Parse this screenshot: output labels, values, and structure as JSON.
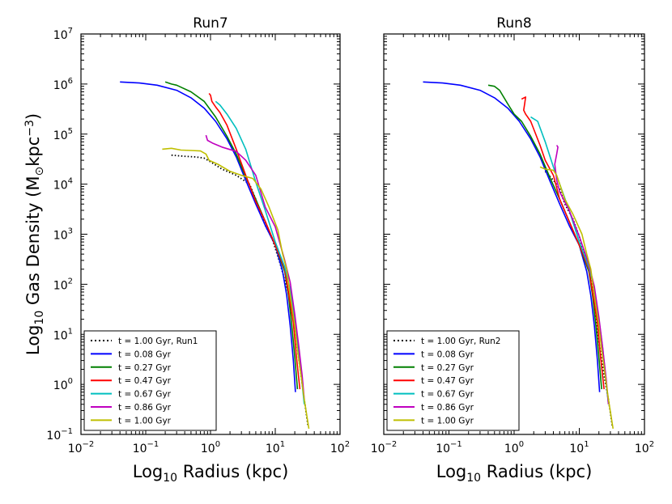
{
  "chart_data": [
    {
      "type": "line",
      "title": "Run7",
      "xscale": "log",
      "yscale": "log",
      "xlim": [
        0.01,
        100
      ],
      "ylim": [
        0.1,
        10000000
      ],
      "xlabel_base": "Log",
      "xlabel_sub": "10",
      "xlabel_rest": " Radius (kpc)",
      "ylabel_base": "Log",
      "ylabel_sub": "10",
      "ylabel_rest": " Gas Density (M",
      "ylabel_sun": "⊙",
      "ylabel_unit": "kpc",
      "ylabel_exp": "−3",
      "ylabel_close": ")",
      "legend_location": "lower-left",
      "series": [
        {
          "name": "t = 1.00 Gyr, Run1",
          "color": "#000000",
          "style": "dotted",
          "points": [
            [
              0.25,
              38000
            ],
            [
              0.4,
              36000
            ],
            [
              0.6,
              35000
            ],
            [
              0.8,
              33000
            ],
            [
              1.0,
              28000
            ],
            [
              1.5,
              20000
            ],
            [
              2.5,
              15000
            ],
            [
              4,
              10000
            ],
            [
              5,
              5000
            ],
            [
              6,
              2500
            ],
            [
              7,
              1500
            ],
            [
              9,
              800
            ],
            [
              12,
              250
            ],
            [
              14,
              120
            ],
            [
              17,
              50
            ],
            [
              20,
              15
            ],
            [
              22,
              5
            ],
            [
              25,
              1.5
            ],
            [
              28,
              0.5
            ],
            [
              32,
              0.15
            ]
          ]
        },
        {
          "name": "t = 0.08 Gyr",
          "color": "#0000ff",
          "style": "solid",
          "points": [
            [
              0.04,
              1100000
            ],
            [
              0.08,
              1050000
            ],
            [
              0.15,
              950000
            ],
            [
              0.3,
              750000
            ],
            [
              0.5,
              530000
            ],
            [
              0.8,
              330000
            ],
            [
              1.2,
              180000
            ],
            [
              1.8,
              80000
            ],
            [
              2.5,
              35000
            ],
            [
              3.5,
              12000
            ],
            [
              5,
              4000
            ],
            [
              7,
              1500
            ],
            [
              10,
              600
            ],
            [
              13,
              180
            ],
            [
              15,
              60
            ],
            [
              17,
              15
            ],
            [
              19,
              3
            ],
            [
              20.5,
              0.7
            ]
          ]
        },
        {
          "name": "t = 0.27 Gyr",
          "color": "#008000",
          "style": "solid",
          "points": [
            [
              0.2,
              1100000
            ],
            [
              0.25,
              1000000
            ],
            [
              0.3,
              950000
            ],
            [
              0.5,
              700000
            ],
            [
              0.8,
              450000
            ],
            [
              1.2,
              220000
            ],
            [
              1.8,
              90000
            ],
            [
              2.5,
              40000
            ],
            [
              3.5,
              14000
            ],
            [
              5,
              5000
            ],
            [
              7,
              1800
            ],
            [
              10,
              600
            ],
            [
              14,
              180
            ],
            [
              16,
              60
            ],
            [
              18,
              15
            ],
            [
              20,
              3.5
            ],
            [
              22,
              0.8
            ]
          ]
        },
        {
          "name": "t = 0.47 Gyr",
          "color": "#ff0000",
          "style": "solid",
          "points": [
            [
              0.95,
              650000
            ],
            [
              1.0,
              600000
            ],
            [
              1.05,
              450000
            ],
            [
              1.2,
              350000
            ],
            [
              1.4,
              270000
            ],
            [
              1.8,
              150000
            ],
            [
              2.5,
              50000
            ],
            [
              3.5,
              15000
            ],
            [
              5,
              4500
            ],
            [
              7,
              1800
            ],
            [
              10,
              600
            ],
            [
              14,
              200
            ],
            [
              16,
              70
            ],
            [
              19,
              17
            ],
            [
              21,
              4
            ],
            [
              24,
              0.8
            ]
          ]
        },
        {
          "name": "t = 0.67 Gyr",
          "color": "#00bfbf",
          "style": "solid",
          "points": [
            [
              1.2,
              450000
            ],
            [
              1.4,
              380000
            ],
            [
              1.8,
              250000
            ],
            [
              2.5,
              130000
            ],
            [
              3.5,
              50000
            ],
            [
              5,
              11000
            ],
            [
              7,
              3000
            ],
            [
              10,
              700
            ],
            [
              14,
              220
            ],
            [
              17,
              80
            ],
            [
              20,
              20
            ],
            [
              23,
              5
            ],
            [
              26,
              1
            ],
            [
              28,
              0.4
            ]
          ]
        },
        {
          "name": "t = 0.86 Gyr",
          "color": "#bf00bf",
          "style": "solid",
          "points": [
            [
              0.85,
              95000
            ],
            [
              0.9,
              75000
            ],
            [
              1.1,
              65000
            ],
            [
              1.5,
              55000
            ],
            [
              2.5,
              45000
            ],
            [
              3.5,
              30000
            ],
            [
              5,
              15000
            ],
            [
              7,
              3500
            ],
            [
              10,
              1400
            ],
            [
              14,
              300
            ],
            [
              17,
              110
            ],
            [
              20,
              25
            ],
            [
              23,
              6
            ],
            [
              26,
              1.5
            ],
            [
              28,
              0.5
            ]
          ]
        },
        {
          "name": "t = 1.00 Gyr",
          "color": "#bfbf00",
          "style": "solid",
          "points": [
            [
              0.18,
              50000
            ],
            [
              0.25,
              52000
            ],
            [
              0.35,
              48000
            ],
            [
              0.5,
              47000
            ],
            [
              0.7,
              46000
            ],
            [
              0.85,
              40000
            ],
            [
              0.95,
              30000
            ],
            [
              1.3,
              25000
            ],
            [
              2,
              18000
            ],
            [
              3,
              15000
            ],
            [
              4.5,
              13000
            ],
            [
              6,
              8000
            ],
            [
              8,
              3500
            ],
            [
              11,
              1200
            ],
            [
              13,
              400
            ],
            [
              15,
              200
            ],
            [
              17,
              60
            ],
            [
              20,
              15
            ],
            [
              22,
              5
            ],
            [
              25,
              1.5
            ],
            [
              28,
              0.5
            ],
            [
              33,
              0.13
            ]
          ]
        }
      ]
    },
    {
      "type": "line",
      "title": "Run8",
      "xscale": "log",
      "yscale": "log",
      "xlim": [
        0.01,
        100
      ],
      "ylim": [
        0.1,
        10000000
      ],
      "xlabel_base": "Log",
      "xlabel_sub": "10",
      "xlabel_rest": " Radius (kpc)",
      "legend_location": "lower-left",
      "series": [
        {
          "name": "t = 1.00 Gyr, Run2",
          "color": "#000000",
          "style": "dotted",
          "points": [
            [
              3,
              18000
            ],
            [
              4,
              12000
            ],
            [
              5,
              8000
            ],
            [
              6,
              4000
            ],
            [
              8,
              2000
            ],
            [
              10,
              900
            ],
            [
              12,
              400
            ],
            [
              14,
              200
            ],
            [
              16,
              80
            ],
            [
              18,
              25
            ],
            [
              20,
              7
            ],
            [
              24,
              1.5
            ],
            [
              28,
              0.5
            ],
            [
              32,
              0.15
            ]
          ]
        },
        {
          "name": "t = 0.08 Gyr",
          "color": "#0000ff",
          "style": "solid",
          "points": [
            [
              0.04,
              1100000
            ],
            [
              0.08,
              1050000
            ],
            [
              0.15,
              950000
            ],
            [
              0.3,
              750000
            ],
            [
              0.5,
              530000
            ],
            [
              0.8,
              330000
            ],
            [
              1.2,
              180000
            ],
            [
              1.8,
              80000
            ],
            [
              2.5,
              35000
            ],
            [
              3.5,
              12000
            ],
            [
              5,
              4000
            ],
            [
              7,
              1500
            ],
            [
              10,
              600
            ],
            [
              13,
              180
            ],
            [
              15,
              60
            ],
            [
              17,
              15
            ],
            [
              19,
              3
            ],
            [
              20.5,
              0.7
            ]
          ]
        },
        {
          "name": "t = 0.27 Gyr",
          "color": "#008000",
          "style": "solid",
          "points": [
            [
              0.4,
              950000
            ],
            [
              0.5,
              900000
            ],
            [
              0.6,
              750000
            ],
            [
              0.8,
              400000
            ],
            [
              1.0,
              250000
            ],
            [
              1.3,
              180000
            ],
            [
              1.8,
              90000
            ],
            [
              2.5,
              40000
            ],
            [
              3.5,
              14000
            ],
            [
              5,
              5000
            ],
            [
              7,
              1800
            ],
            [
              10,
              600
            ],
            [
              14,
              180
            ],
            [
              16,
              60
            ],
            [
              18,
              15
            ],
            [
              20,
              3.5
            ],
            [
              22,
              0.8
            ]
          ]
        },
        {
          "name": "t = 0.47 Gyr",
          "color": "#ff0000",
          "style": "solid",
          "points": [
            [
              1.3,
              500000
            ],
            [
              1.5,
              550000
            ],
            [
              1.45,
              400000
            ],
            [
              1.4,
              300000
            ],
            [
              1.5,
              250000
            ],
            [
              1.8,
              180000
            ],
            [
              2.5,
              60000
            ],
            [
              3,
              30000
            ],
            [
              4,
              15000
            ],
            [
              5,
              5000
            ],
            [
              7,
              1800
            ],
            [
              10,
              600
            ],
            [
              14,
              200
            ],
            [
              16,
              70
            ],
            [
              19,
              17
            ],
            [
              21,
              4
            ],
            [
              24,
              0.8
            ]
          ]
        },
        {
          "name": "t = 0.67 Gyr",
          "color": "#00bfbf",
          "style": "solid",
          "points": [
            [
              1.8,
              220000
            ],
            [
              2.3,
              180000
            ],
            [
              3,
              70000
            ],
            [
              4,
              22000
            ],
            [
              5,
              10000
            ],
            [
              7,
              3000
            ],
            [
              10,
              700
            ],
            [
              14,
              220
            ],
            [
              17,
              80
            ],
            [
              20,
              20
            ],
            [
              23,
              5
            ],
            [
              26,
              1
            ],
            [
              28,
              0.4
            ]
          ]
        },
        {
          "name": "t = 0.86 Gyr",
          "color": "#bf00bf",
          "style": "solid",
          "points": [
            [
              4.5,
              60000
            ],
            [
              4.7,
              55000
            ],
            [
              4.5,
              40000
            ],
            [
              4.2,
              25000
            ],
            [
              4.5,
              12000
            ],
            [
              5,
              7000
            ],
            [
              7,
              3000
            ],
            [
              10,
              900
            ],
            [
              14,
              250
            ],
            [
              17,
              90
            ],
            [
              20,
              22
            ],
            [
              23,
              5
            ],
            [
              26,
              1.2
            ],
            [
              28,
              0.4
            ]
          ]
        },
        {
          "name": "t = 1.00 Gyr",
          "color": "#bfbf00",
          "style": "solid",
          "points": [
            [
              2.5,
              22000
            ],
            [
              3,
              20000
            ],
            [
              4,
              19000
            ],
            [
              4.5,
              15000
            ],
            [
              5,
              10000
            ],
            [
              6,
              5000
            ],
            [
              8,
              2500
            ],
            [
              11,
              1000
            ],
            [
              13,
              400
            ],
            [
              15,
              200
            ],
            [
              17,
              60
            ],
            [
              20,
              15
            ],
            [
              22,
              5
            ],
            [
              25,
              1.5
            ],
            [
              28,
              0.5
            ],
            [
              33,
              0.13
            ]
          ]
        }
      ]
    }
  ]
}
